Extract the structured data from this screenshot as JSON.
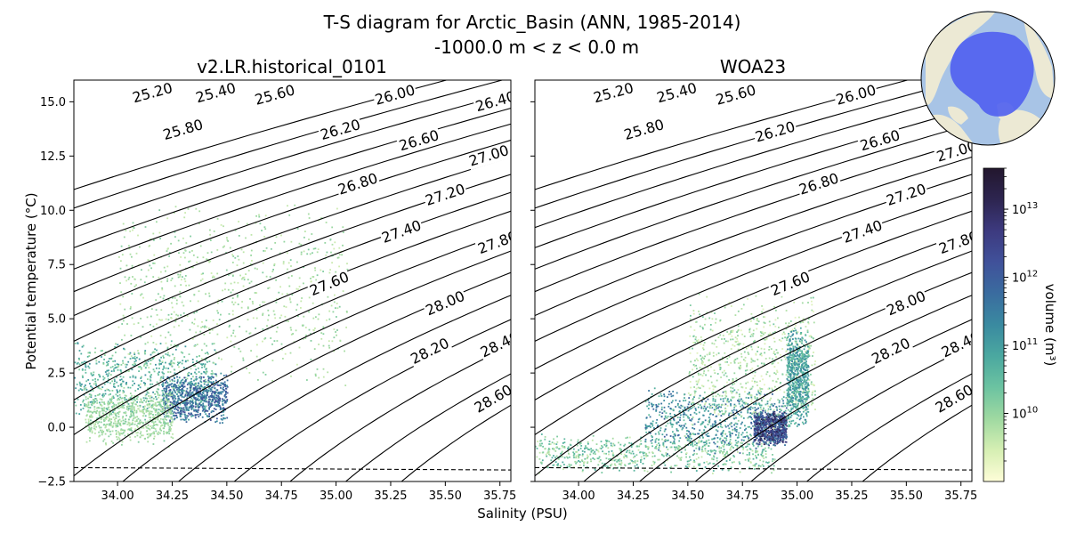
{
  "figure": {
    "title": "T-S diagram for Arctic_Basin (ANN, 1985-2014)",
    "subtitle": "-1000.0 m < z < 0.0 m"
  },
  "chart_data": {
    "type": "scatter",
    "xlabel": "Salinity (PSU)",
    "ylabel": "Potential temperature (°C)",
    "xlim": [
      33.8,
      35.8
    ],
    "ylim": [
      -2.5,
      16.0
    ],
    "x_ticks": [
      "34.00",
      "34.25",
      "34.50",
      "34.75",
      "35.00",
      "35.25",
      "35.50",
      "35.75"
    ],
    "x_tick_values": [
      34.0,
      34.25,
      34.5,
      34.75,
      35.0,
      35.25,
      35.5,
      35.75
    ],
    "y_ticks": [
      "15.0",
      "12.5",
      "10.0",
      "7.5",
      "5.0",
      "2.5",
      "0.0",
      "−2.5"
    ],
    "y_tick_values": [
      15.0,
      12.5,
      10.0,
      7.5,
      5.0,
      2.5,
      0.0,
      -2.5
    ],
    "freezing_line": [
      [
        33.8,
        -1.86
      ],
      [
        35.8,
        -1.97
      ]
    ],
    "density_contours": {
      "levels": [
        "25.20",
        "25.40",
        "25.60",
        "25.80",
        "26.00",
        "26.20",
        "26.40",
        "26.60",
        "26.80",
        "27.00",
        "27.20",
        "27.40",
        "27.60",
        "27.80",
        "28.00",
        "28.20",
        "28.40",
        "28.60"
      ],
      "level_values": [
        25.2,
        25.4,
        25.6,
        25.8,
        26.0,
        26.2,
        26.4,
        26.6,
        26.8,
        27.0,
        27.2,
        27.4,
        27.6,
        27.8,
        28.0,
        28.2,
        28.4,
        28.6
      ]
    },
    "panels": [
      {
        "title": "v2.LR.historical_0101",
        "labeled_contours": [
          {
            "level": "25.20",
            "S": 34.16,
            "T": 15.4
          },
          {
            "level": "25.40",
            "S": 34.45,
            "T": 15.4
          },
          {
            "level": "25.60",
            "S": 34.72,
            "T": 15.3
          },
          {
            "level": "26.00",
            "S": 35.27,
            "T": 15.3
          },
          {
            "level": "26.40",
            "S": 35.73,
            "T": 15.0
          },
          {
            "level": "25.80",
            "S": 34.3,
            "T": 13.7
          },
          {
            "level": "26.20",
            "S": 35.02,
            "T": 13.7
          },
          {
            "level": "26.60",
            "S": 35.38,
            "T": 13.2
          },
          {
            "level": "27.00",
            "S": 35.7,
            "T": 12.5
          },
          {
            "level": "26.80",
            "S": 35.1,
            "T": 11.2
          },
          {
            "level": "27.20",
            "S": 35.5,
            "T": 10.7
          },
          {
            "level": "27.40",
            "S": 35.3,
            "T": 9.0
          },
          {
            "level": "27.80",
            "S": 35.74,
            "T": 8.5
          },
          {
            "level": "27.60",
            "S": 34.97,
            "T": 6.6
          },
          {
            "level": "28.00",
            "S": 35.5,
            "T": 5.7
          },
          {
            "level": "28.20",
            "S": 35.43,
            "T": 3.5
          },
          {
            "level": "28.40",
            "S": 35.75,
            "T": 3.8
          },
          {
            "level": "28.60",
            "S": 35.72,
            "T": 1.3
          }
        ],
        "clusters": [
          {
            "S": [
              33.8,
              34.45
            ],
            "T": [
              0.8,
              3.6
            ],
            "log10_volume": [
              9.9,
              11.2
            ]
          },
          {
            "S": [
              34.2,
              34.5
            ],
            "T": [
              0.5,
              2.2
            ],
            "log10_volume": [
              11.0,
              12.4
            ]
          },
          {
            "S": [
              34.0,
              35.05
            ],
            "T": [
              3.0,
              9.4
            ],
            "log10_volume": [
              9.5,
              10.2
            ]
          },
          {
            "S": [
              33.85,
              34.25
            ],
            "T": [
              -0.5,
              1.5
            ],
            "log10_volume": [
              9.6,
              10.2
            ]
          }
        ]
      },
      {
        "title": "WOA23",
        "labeled_contours": [
          {
            "level": "25.20",
            "S": 34.16,
            "T": 15.4
          },
          {
            "level": "25.40",
            "S": 34.45,
            "T": 15.4
          },
          {
            "level": "25.60",
            "S": 34.72,
            "T": 15.3
          },
          {
            "level": "26.00",
            "S": 35.27,
            "T": 15.3
          },
          {
            "level": "25.80",
            "S": 34.3,
            "T": 13.7
          },
          {
            "level": "26.20",
            "S": 34.9,
            "T": 13.6
          },
          {
            "level": "26.60",
            "S": 35.38,
            "T": 13.2
          },
          {
            "level": "27.00",
            "S": 35.73,
            "T": 12.7
          },
          {
            "level": "26.80",
            "S": 35.1,
            "T": 11.2
          },
          {
            "level": "27.20",
            "S": 35.5,
            "T": 10.7
          },
          {
            "level": "27.40",
            "S": 35.3,
            "T": 9.0
          },
          {
            "level": "27.80",
            "S": 35.74,
            "T": 8.5
          },
          {
            "level": "27.60",
            "S": 34.97,
            "T": 6.6
          },
          {
            "level": "28.00",
            "S": 35.5,
            "T": 5.7
          },
          {
            "level": "28.20",
            "S": 35.43,
            "T": 3.5
          },
          {
            "level": "28.40",
            "S": 35.75,
            "T": 3.8
          },
          {
            "level": "28.60",
            "S": 35.72,
            "T": 1.3
          }
        ],
        "clusters": [
          {
            "S": [
              33.8,
              34.9
            ],
            "T": [
              -1.85,
              -0.5
            ],
            "log10_volume": [
              9.5,
              10.8
            ]
          },
          {
            "S": [
              34.3,
              34.95
            ],
            "T": [
              -0.8,
              1.5
            ],
            "log10_volume": [
              10.3,
              12.0
            ]
          },
          {
            "S": [
              34.8,
              34.95
            ],
            "T": [
              -0.6,
              0.6
            ],
            "log10_volume": [
              11.5,
              13.3
            ]
          },
          {
            "S": [
              34.5,
              35.08
            ],
            "T": [
              0.5,
              5.5
            ],
            "log10_volume": [
              9.3,
              10.3
            ]
          },
          {
            "S": [
              34.95,
              35.05
            ],
            "T": [
              0.5,
              4.0
            ],
            "log10_volume": [
              10.3,
              11.5
            ]
          }
        ]
      }
    ],
    "colorbar": {
      "label": "volume (m³)",
      "scale": "log",
      "range": [
        1000000000.0,
        40000000000000.0
      ],
      "ticks": [
        {
          "base": "10",
          "exp": "10",
          "value": 10000000000.0
        },
        {
          "base": "10",
          "exp": "11",
          "value": 100000000000.0
        },
        {
          "base": "10",
          "exp": "12",
          "value": 1000000000000.0
        },
        {
          "base": "10",
          "exp": "13",
          "value": 10000000000000.0
        }
      ],
      "colormap": [
        "#fefdd8",
        "#d6efb3",
        "#9fd9a1",
        "#6cc3a1",
        "#4ba8a0",
        "#3a8aa0",
        "#3a6c9f",
        "#40519a",
        "#3d3a7f",
        "#2d2550",
        "#23172e"
      ]
    },
    "inset_map": {
      "projection": "north-polar-stereographic",
      "ocean_color": "#a8c4e6",
      "land_color": "#ece9d4",
      "region_color": "#4f5ff0"
    }
  }
}
